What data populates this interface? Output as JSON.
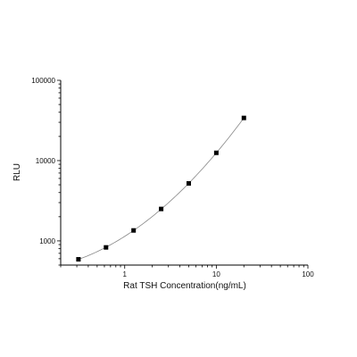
{
  "chart_data": {
    "type": "scatter",
    "title": "",
    "xlabel": "Rat TSH Concentration(ng/mL)",
    "ylabel": "RLU",
    "xscale": "log",
    "yscale": "log",
    "xlim": [
      0.2,
      100
    ],
    "ylim": [
      500,
      100000
    ],
    "grid": false,
    "xticks": [
      1,
      10,
      100
    ],
    "xtick_labels": [
      "1",
      "10",
      "100"
    ],
    "yticks": [
      1000,
      10000,
      100000
    ],
    "ytick_labels": [
      "1000",
      "10000",
      "100000"
    ],
    "series": [
      {
        "marker": "square",
        "fit_line": true,
        "x": [
          0.3125,
          0.625,
          1.25,
          2.5,
          5,
          10,
          20
        ],
        "y": [
          590,
          830,
          1350,
          2500,
          5200,
          12500,
          34000
        ]
      }
    ]
  }
}
